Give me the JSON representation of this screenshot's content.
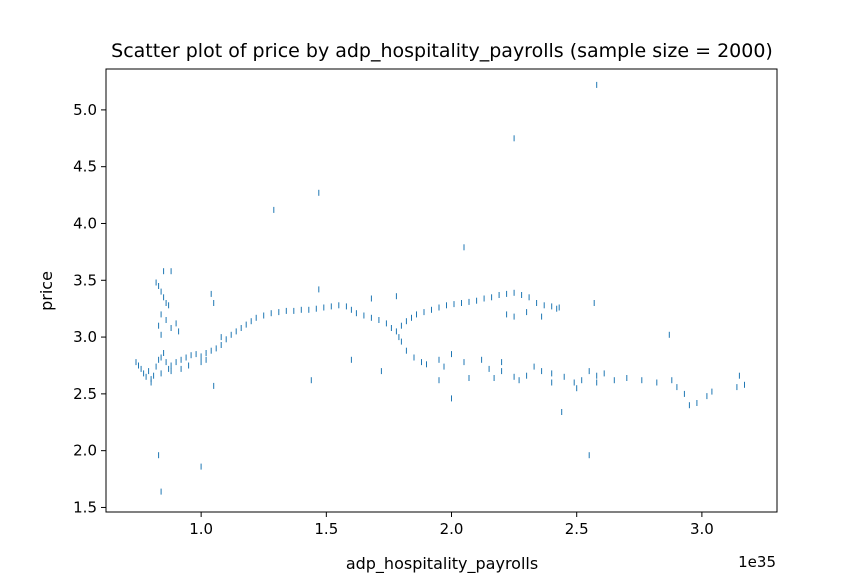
{
  "chart_data": {
    "type": "scatter",
    "title": "Scatter plot of price by adp_hospitality_payrolls (sample size = 2000)",
    "xlabel": "adp_hospitality_payrolls",
    "ylabel": "price",
    "x_offset_label": "1e35",
    "x_scale": 1e+35,
    "xlim": [
      0.62,
      3.3
    ],
    "ylim": [
      1.46,
      5.36
    ],
    "x_ticks": [
      {
        "value": 1.0,
        "label": "1.0"
      },
      {
        "value": 1.5,
        "label": "1.5"
      },
      {
        "value": 2.0,
        "label": "2.0"
      },
      {
        "value": 2.5,
        "label": "2.5"
      },
      {
        "value": 3.0,
        "label": "3.0"
      }
    ],
    "y_ticks": [
      {
        "value": 1.5,
        "label": "1.5"
      },
      {
        "value": 2.0,
        "label": "2.0"
      },
      {
        "value": 2.5,
        "label": "2.5"
      },
      {
        "value": 3.0,
        "label": "3.0"
      },
      {
        "value": 3.5,
        "label": "3.5"
      },
      {
        "value": 4.0,
        "label": "4.0"
      },
      {
        "value": 4.5,
        "label": "4.5"
      },
      {
        "value": 5.0,
        "label": "5.0"
      }
    ],
    "marker_color": "#1f77b4",
    "grid": false,
    "series": [
      {
        "values": [
          [
            0.74,
            2.78
          ],
          [
            0.75,
            2.75
          ],
          [
            0.76,
            2.72
          ],
          [
            0.77,
            2.68
          ],
          [
            0.78,
            2.65
          ],
          [
            0.79,
            2.7
          ],
          [
            0.8,
            2.63
          ],
          [
            0.81,
            2.66
          ],
          [
            0.82,
            2.74
          ],
          [
            0.83,
            2.8
          ],
          [
            0.84,
            2.82
          ],
          [
            0.85,
            2.86
          ],
          [
            0.86,
            2.78
          ],
          [
            0.87,
            2.72
          ],
          [
            0.88,
            2.75
          ],
          [
            0.9,
            2.78
          ],
          [
            0.92,
            2.8
          ],
          [
            0.94,
            2.82
          ],
          [
            0.96,
            2.84
          ],
          [
            0.98,
            2.85
          ],
          [
            1.0,
            2.83
          ],
          [
            1.02,
            2.86
          ],
          [
            1.04,
            2.88
          ],
          [
            1.06,
            2.9
          ],
          [
            1.08,
            2.93
          ],
          [
            1.1,
            2.98
          ],
          [
            1.12,
            3.02
          ],
          [
            1.14,
            3.05
          ],
          [
            1.16,
            3.08
          ],
          [
            1.18,
            3.11
          ],
          [
            1.2,
            3.14
          ],
          [
            1.22,
            3.17
          ],
          [
            1.25,
            3.19
          ],
          [
            1.28,
            3.21
          ],
          [
            1.31,
            3.22
          ],
          [
            1.34,
            3.23
          ],
          [
            1.37,
            3.23
          ],
          [
            1.4,
            3.24
          ],
          [
            1.43,
            3.24
          ],
          [
            1.46,
            3.25
          ],
          [
            1.49,
            3.26
          ],
          [
            1.52,
            3.27
          ],
          [
            1.55,
            3.28
          ],
          [
            1.58,
            3.27
          ],
          [
            1.6,
            3.24
          ],
          [
            1.62,
            3.21
          ],
          [
            1.65,
            3.19
          ],
          [
            1.68,
            3.17
          ],
          [
            1.71,
            3.15
          ],
          [
            1.74,
            3.12
          ],
          [
            1.76,
            3.08
          ],
          [
            1.78,
            3.05
          ],
          [
            1.79,
            3.0
          ],
          [
            1.8,
            3.1
          ],
          [
            1.82,
            3.14
          ],
          [
            1.84,
            3.17
          ],
          [
            1.86,
            3.2
          ],
          [
            1.89,
            3.22
          ],
          [
            1.92,
            3.24
          ],
          [
            1.95,
            3.26
          ],
          [
            1.98,
            3.28
          ],
          [
            2.01,
            3.29
          ],
          [
            2.04,
            3.3
          ],
          [
            2.07,
            3.31
          ],
          [
            2.1,
            3.32
          ],
          [
            2.13,
            3.34
          ],
          [
            2.16,
            3.35
          ],
          [
            2.19,
            3.37
          ],
          [
            2.22,
            3.38
          ],
          [
            2.25,
            3.39
          ],
          [
            2.28,
            3.37
          ],
          [
            2.31,
            3.35
          ],
          [
            2.34,
            3.3
          ],
          [
            2.37,
            3.28
          ],
          [
            2.4,
            3.27
          ],
          [
            2.43,
            3.26
          ],
          [
            2.22,
            3.2
          ],
          [
            2.25,
            3.18
          ],
          [
            2.3,
            3.22
          ],
          [
            2.36,
            3.18
          ],
          [
            2.42,
            3.25
          ],
          [
            0.82,
            3.48
          ],
          [
            0.83,
            3.45
          ],
          [
            0.84,
            3.4
          ],
          [
            0.85,
            3.35
          ],
          [
            0.86,
            3.3
          ],
          [
            0.87,
            3.28
          ],
          [
            0.85,
            3.58
          ],
          [
            0.88,
            3.58
          ],
          [
            0.84,
            3.2
          ],
          [
            0.83,
            3.1
          ],
          [
            0.86,
            3.15
          ],
          [
            0.88,
            3.08
          ],
          [
            0.9,
            3.12
          ],
          [
            0.91,
            3.05
          ],
          [
            0.84,
            3.02
          ],
          [
            1.04,
            3.38
          ],
          [
            1.05,
            3.3
          ],
          [
            1.08,
            3.0
          ],
          [
            0.8,
            2.6
          ],
          [
            0.84,
            2.68
          ],
          [
            0.88,
            2.7
          ],
          [
            0.92,
            2.72
          ],
          [
            0.95,
            2.75
          ],
          [
            1.0,
            2.78
          ],
          [
            1.02,
            2.8
          ],
          [
            1.8,
            2.96
          ],
          [
            1.82,
            2.88
          ],
          [
            1.85,
            2.82
          ],
          [
            1.88,
            2.78
          ],
          [
            1.9,
            2.76
          ],
          [
            1.95,
            2.8
          ],
          [
            1.97,
            2.74
          ],
          [
            2.0,
            2.85
          ],
          [
            2.05,
            2.78
          ],
          [
            2.12,
            2.8
          ],
          [
            2.15,
            2.72
          ],
          [
            2.2,
            2.78
          ],
          [
            2.2,
            2.7
          ],
          [
            2.25,
            2.65
          ],
          [
            2.3,
            2.66
          ],
          [
            2.33,
            2.74
          ],
          [
            2.36,
            2.7
          ],
          [
            2.4,
            2.68
          ],
          [
            2.45,
            2.65
          ],
          [
            2.49,
            2.6
          ],
          [
            2.52,
            2.62
          ],
          [
            2.55,
            2.7
          ],
          [
            2.58,
            2.66
          ],
          [
            2.61,
            2.68
          ],
          [
            2.65,
            2.62
          ],
          [
            2.7,
            2.64
          ],
          [
            2.76,
            2.62
          ],
          [
            2.82,
            2.6
          ],
          [
            2.88,
            2.62
          ],
          [
            2.9,
            2.56
          ],
          [
            2.93,
            2.5
          ],
          [
            2.95,
            2.4
          ],
          [
            2.98,
            2.42
          ],
          [
            3.02,
            2.48
          ],
          [
            3.04,
            2.52
          ],
          [
            3.14,
            2.56
          ],
          [
            3.17,
            2.58
          ],
          [
            3.15,
            2.66
          ],
          [
            1.95,
            2.62
          ],
          [
            2.07,
            2.64
          ],
          [
            2.17,
            2.64
          ],
          [
            2.27,
            2.62
          ],
          [
            2.4,
            2.6
          ],
          [
            2.5,
            2.55
          ],
          [
            2.58,
            2.6
          ],
          [
            1.78,
            3.36
          ],
          [
            1.68,
            3.34
          ],
          [
            1.6,
            2.8
          ],
          [
            1.72,
            2.7
          ],
          [
            1.44,
            2.62
          ],
          [
            1.05,
            2.57
          ],
          [
            2.87,
            3.02
          ],
          [
            2.57,
            3.3
          ],
          [
            1.47,
            3.42
          ],
          [
            1.29,
            4.12
          ],
          [
            1.47,
            4.27
          ],
          [
            2.05,
            3.79
          ],
          [
            2.25,
            4.75
          ],
          [
            2.58,
            5.22
          ],
          [
            0.83,
            1.96
          ],
          [
            0.84,
            1.64
          ],
          [
            1.0,
            1.86
          ],
          [
            2.55,
            1.96
          ],
          [
            2.44,
            2.34
          ],
          [
            2.0,
            2.46
          ]
        ]
      }
    ]
  }
}
